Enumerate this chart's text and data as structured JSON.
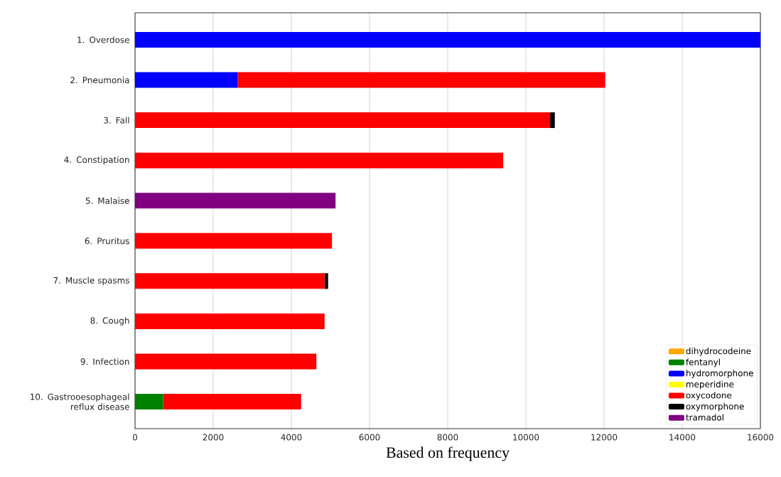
{
  "chart_data": {
    "type": "bar",
    "orientation": "horizontal",
    "stacked": true,
    "xlabel": "Based on frequency",
    "categories": [
      "1. Overdose",
      "2. Pneumonia",
      "3. Fall",
      "4. Constipation",
      "5. Malaise",
      "6. Pruritus",
      "7. Muscle spasms",
      "8. Cough",
      "9. Infection",
      "10. Gastrooesophageal reflux disease"
    ],
    "series": [
      {
        "name": "dihydrocodeine",
        "color": "#ffa500",
        "values": [
          0,
          0,
          0,
          0,
          0,
          0,
          0,
          0,
          0,
          0
        ]
      },
      {
        "name": "fentanyl",
        "color": "#008000",
        "values": [
          0,
          0,
          0,
          0,
          0,
          0,
          0,
          0,
          0,
          720
        ]
      },
      {
        "name": "hydromorphone",
        "color": "#0000ff",
        "values": [
          16000,
          2630,
          0,
          0,
          0,
          0,
          0,
          0,
          0,
          0
        ]
      },
      {
        "name": "meperidine",
        "color": "#ffff00",
        "values": [
          0,
          0,
          0,
          0,
          0,
          0,
          0,
          0,
          0,
          0
        ]
      },
      {
        "name": "oxycodone",
        "color": "#ff0000",
        "values": [
          0,
          9400,
          10620,
          9420,
          0,
          5040,
          4850,
          4850,
          4640,
          3530
        ]
      },
      {
        "name": "oxymorphone",
        "color": "#000000",
        "values": [
          0,
          0,
          120,
          0,
          0,
          0,
          90,
          0,
          0,
          0
        ]
      },
      {
        "name": "tramadol",
        "color": "#800080",
        "values": [
          0,
          0,
          0,
          0,
          5130,
          0,
          0,
          0,
          0,
          0
        ]
      }
    ],
    "xlim": [
      0,
      16000
    ],
    "xticks": [
      0,
      2000,
      4000,
      6000,
      8000,
      10000,
      12000,
      14000,
      16000
    ],
    "grid": "x",
    "legend": "bottom right"
  }
}
